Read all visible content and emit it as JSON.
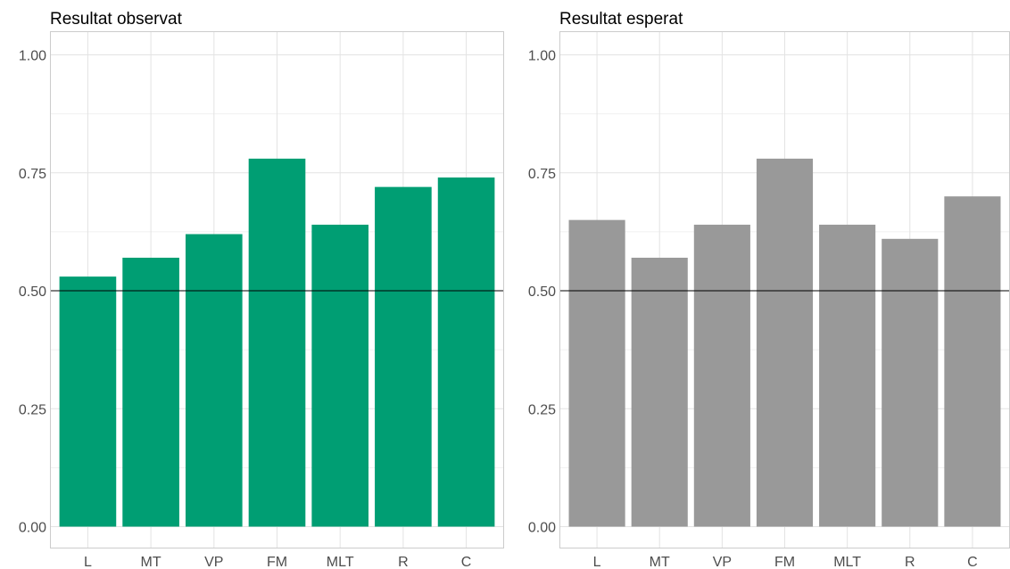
{
  "chart_data": [
    {
      "type": "bar",
      "title": "Resultat observat",
      "categories": [
        "L",
        "MT",
        "VP",
        "FM",
        "MLT",
        "R",
        "C"
      ],
      "values": [
        0.53,
        0.57,
        0.62,
        0.78,
        0.64,
        0.72,
        0.74
      ],
      "ylim": [
        0,
        1.0
      ],
      "yticks": [
        "0.00",
        "0.25",
        "0.50",
        "0.75",
        "1.00"
      ],
      "reference_line": 0.5,
      "bar_color": "#009E73",
      "grid": true
    },
    {
      "type": "bar",
      "title": "Resultat esperat",
      "categories": [
        "L",
        "MT",
        "VP",
        "FM",
        "MLT",
        "R",
        "C"
      ],
      "values": [
        0.65,
        0.57,
        0.64,
        0.78,
        0.64,
        0.61,
        0.7
      ],
      "ylim": [
        0,
        1.0
      ],
      "yticks": [
        "0.00",
        "0.25",
        "0.50",
        "0.75",
        "1.00"
      ],
      "reference_line": 0.5,
      "bar_color": "#999999",
      "grid": true
    }
  ]
}
